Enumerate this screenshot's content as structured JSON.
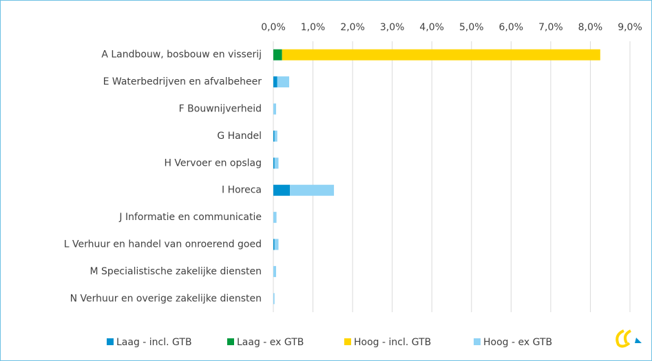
{
  "chart_data": {
    "type": "stacked-barh",
    "categories": [
      "A Landbouw, bosbouw en visserij",
      "E Waterbedrijven en afvalbeheer",
      "F Bouwnijverheid",
      "G Handel",
      "H Vervoer en opslag",
      "I Horeca",
      "J Informatie en communicatie",
      "L Verhuur en handel van onroerend goed",
      "M Specialistische zakelijke diensten",
      "N Verhuur en overige zakelijke diensten"
    ],
    "series": [
      {
        "name": "Laag - incl. GTB",
        "color": "#0091d0",
        "values": [
          0,
          0.1,
          0,
          0.03,
          0.03,
          0.42,
          0,
          0.03,
          0,
          0
        ]
      },
      {
        "name": "Laag - ex GTB",
        "color": "#009a3e",
        "values": [
          0.22,
          0,
          0,
          0,
          0,
          0,
          0,
          0,
          0,
          0
        ]
      },
      {
        "name": "Hoog - incl. GTB",
        "color": "#ffd500",
        "values": [
          8.03,
          0,
          0,
          0,
          0,
          0,
          0,
          0,
          0,
          0
        ]
      },
      {
        "name": "Hoog - ex GTB",
        "color": "#8fd3f5",
        "values": [
          0,
          0.3,
          0.07,
          0.07,
          0.1,
          1.11,
          0.08,
          0.1,
          0.07,
          0.03
        ]
      }
    ],
    "xlim": [
      0,
      9
    ],
    "xticks": [
      {
        "value": 0,
        "label": "0,0%"
      },
      {
        "value": 1,
        "label": "1,0%"
      },
      {
        "value": 2,
        "label": "2,0%"
      },
      {
        "value": 3,
        "label": "3,0%"
      },
      {
        "value": 4,
        "label": "4,0%"
      },
      {
        "value": 5,
        "label": "5,0%"
      },
      {
        "value": 6,
        "label": "6,0%"
      },
      {
        "value": 7,
        "label": "7,0%"
      },
      {
        "value": 8,
        "label": "8,0%"
      },
      {
        "value": 9,
        "label": "9,0%"
      }
    ],
    "grid": true,
    "legend": "bottom"
  }
}
